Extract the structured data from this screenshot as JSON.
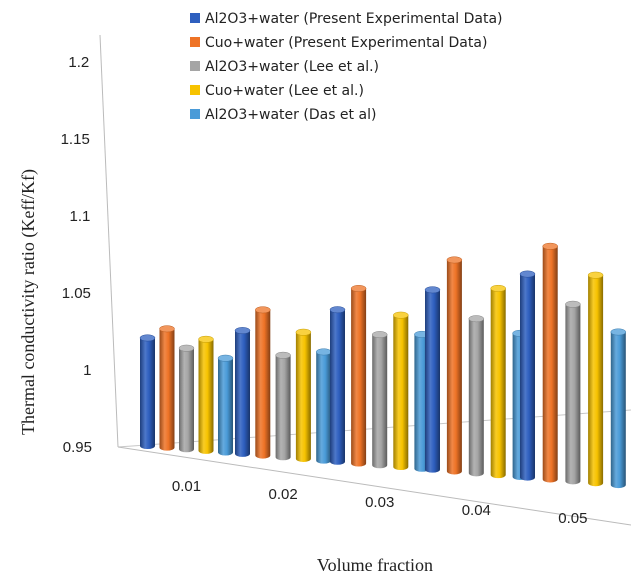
{
  "chart_data": {
    "type": "bar",
    "style": "3d-clustered-cylinder",
    "categories": [
      "0.01",
      "0.02",
      "0.03",
      "0.04",
      "0.05"
    ],
    "xlabel": "Volume fraction",
    "ylabel": "Thermal conductivity ratio (Keff/Kf)",
    "ylim": [
      0.95,
      1.2
    ],
    "yticks": [
      "0.95",
      "1",
      "1.05",
      "1.1",
      "1.15",
      "1.2"
    ],
    "grid": false,
    "legend_position": "top-right",
    "series": [
      {
        "name": "Al2O3+water (Present Experimental Data)",
        "color": "#2E5FBF",
        "values": [
          1.021,
          1.036,
          1.063,
          1.093,
          1.124
        ]
      },
      {
        "name": "Cuo+water (Present Experimental Data)",
        "color": "#EE7326",
        "values": [
          1.029,
          1.053,
          1.082,
          1.121,
          1.153
        ]
      },
      {
        "name": "Al2O3+water (Lee et al.)",
        "color": "#A5A5A5",
        "values": [
          1.018,
          1.023,
          1.05,
          1.077,
          1.107
        ]
      },
      {
        "name": "Cuo+water (Lee et al.)",
        "color": "#F7C300",
        "values": [
          1.026,
          1.042,
          1.068,
          1.106,
          1.138
        ]
      },
      {
        "name": "Al2O3+water (Das et al)",
        "color": "#4A9BD8",
        "values": [
          1.015,
          1.03,
          1.056,
          1.072,
          1.091
        ]
      }
    ]
  }
}
